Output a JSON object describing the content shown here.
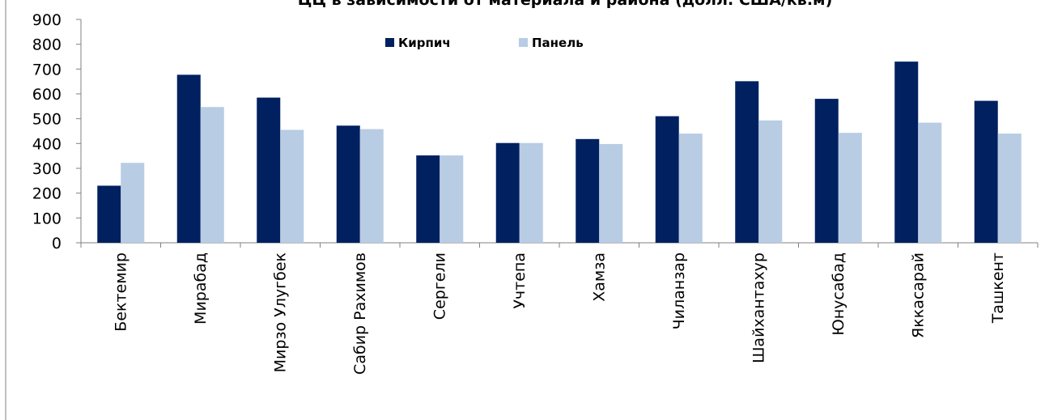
{
  "chart_data": {
    "type": "bar",
    "title": "ЦЦ в зависимости от материала и района (долл. США/кв.м)",
    "xlabel": "",
    "ylabel": "",
    "ylim": [
      0,
      900
    ],
    "yticks": [
      0,
      100,
      200,
      300,
      400,
      500,
      600,
      700,
      800,
      900
    ],
    "grid": false,
    "legend_position": "top-center",
    "categories": [
      "Бектемир",
      "Мирабад",
      "Мирзо Улугбек",
      "Сабир Рахимов",
      "Сергели",
      "Учтепа",
      "Хамза",
      "Чиланзар",
      "Шайхантахур",
      "Юнусабад",
      "Яккасарай",
      "Ташкент"
    ],
    "series": [
      {
        "name": "Кирпич",
        "color": "#002060",
        "values": [
          230,
          677,
          585,
          472,
          352,
          402,
          418,
          510,
          651,
          580,
          730,
          572
        ]
      },
      {
        "name": "Панель",
        "color": "#B8CCE4",
        "values": [
          322,
          547,
          455,
          458,
          352,
          402,
          398,
          440,
          493,
          443,
          484,
          440
        ]
      }
    ]
  }
}
